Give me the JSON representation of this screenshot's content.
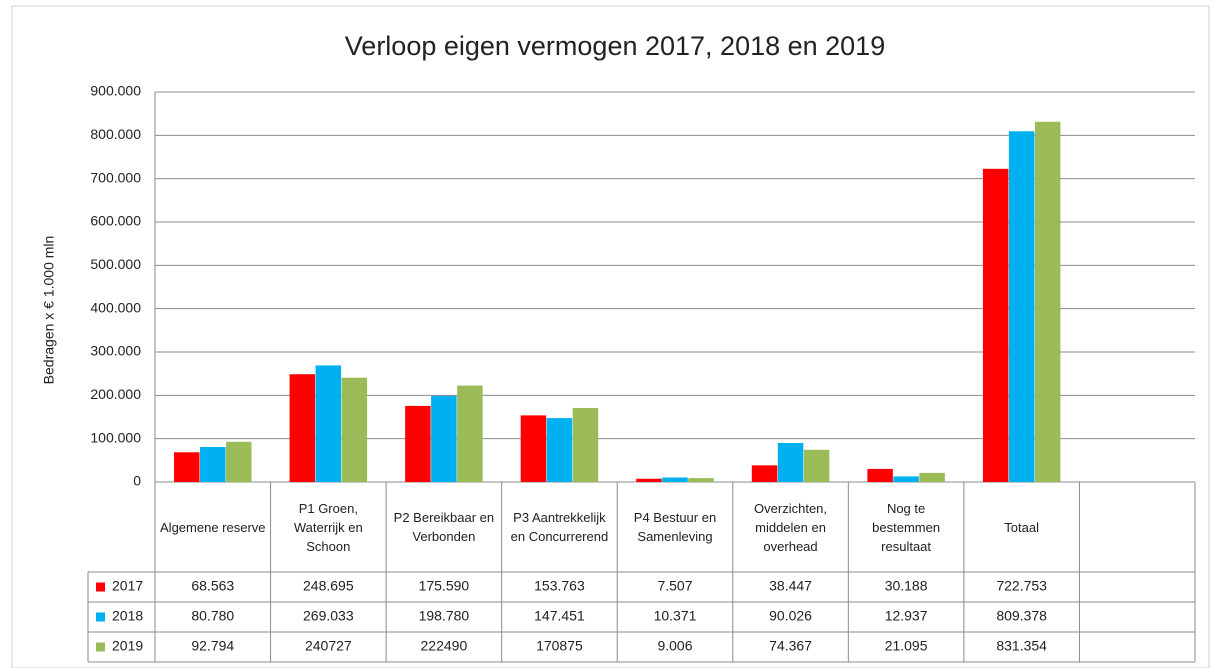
{
  "chart_data": {
    "type": "bar",
    "title": "Verloop eigen vermogen 2017, 2018 en 2019",
    "y_label": "Bedragen x € 1.000 mln",
    "categories": [
      "Algemene reserve",
      "P1 Groen, Waterrijk en Schoon",
      "P2 Bereikbaar en Verbonden",
      "P3 Aantrekkelijk en Concurrerend",
      "P4 Bestuur en Samenleving",
      "Overzichten, middelen en overhead",
      "Nog te bestemmen resultaat",
      "Totaal",
      null
    ],
    "series": [
      {
        "name": "2017",
        "color": "#ff0000",
        "values": [
          68563,
          248695,
          175590,
          153763,
          7507,
          38447,
          30188,
          722753,
          null
        ],
        "value_labels": [
          "68.563",
          "248.695",
          "175.590",
          "153.763",
          "7.507",
          "38.447",
          "30.188",
          "722.753",
          null
        ]
      },
      {
        "name": "2018",
        "color": "#00b0f0",
        "values": [
          80780,
          269033,
          198780,
          147451,
          10371,
          90026,
          12937,
          809378,
          null
        ],
        "value_labels": [
          "80.780",
          "269.033",
          "198.780",
          "147.451",
          "10.371",
          "90.026",
          "12.937",
          "809.378",
          null
        ]
      },
      {
        "name": "2019",
        "color": "#9bbb59",
        "values": [
          92794,
          240727,
          222490,
          170875,
          9006,
          74367,
          21095,
          831354,
          null
        ],
        "value_labels": [
          "92.794",
          "240727",
          "222490",
          "170875",
          "9.006",
          "74.367",
          "21.095",
          "831.354",
          null
        ]
      }
    ],
    "ylim": [
      0,
      900000
    ],
    "yticks": [
      0,
      {
        "value": 100000,
        "label": "100.000"
      },
      {
        "value": 200000,
        "label": "200.000"
      },
      {
        "value": 300000,
        "label": "300.000"
      },
      {
        "value": 400000,
        "label": "400.000"
      },
      {
        "value": 500000,
        "label": "500.000"
      },
      {
        "value": 600000,
        "label": "600.000"
      },
      {
        "value": 700000,
        "label": "700.000"
      },
      {
        "value": 800000,
        "label": "800.000"
      },
      {
        "value": 900000,
        "label": "900.000"
      }
    ],
    "grid": true
  }
}
